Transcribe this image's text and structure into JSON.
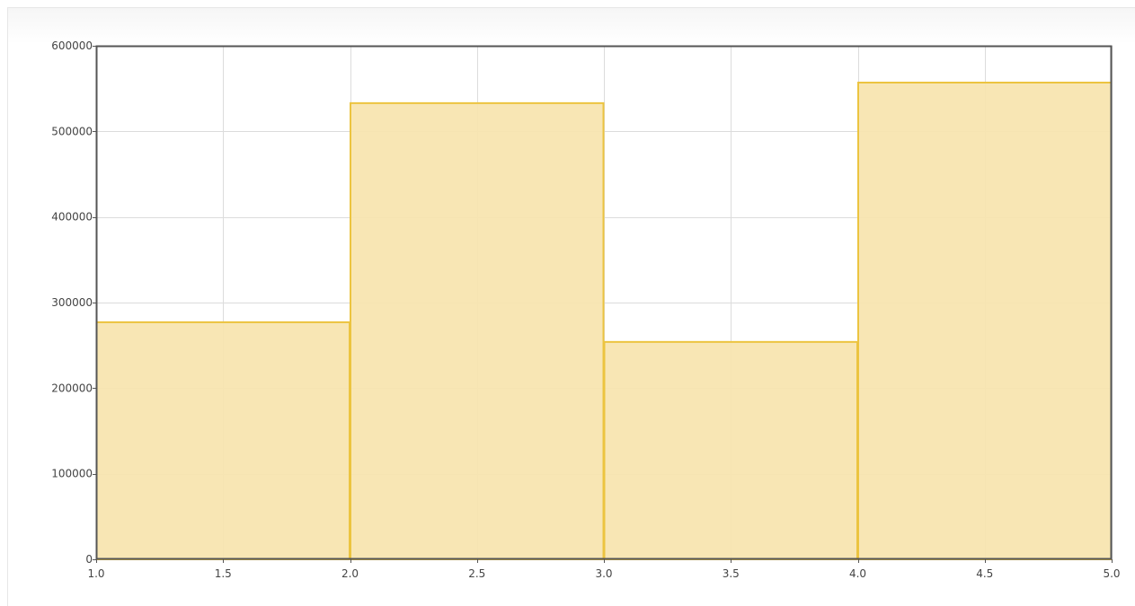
{
  "chart_data": {
    "type": "bar",
    "title": "",
    "xlabel": "",
    "ylabel": "",
    "bins": [
      {
        "x0": 1.0,
        "x1": 2.0,
        "value": 277000
      },
      {
        "x0": 2.0,
        "x1": 3.0,
        "value": 533000
      },
      {
        "x0": 3.0,
        "x1": 4.0,
        "value": 254000
      },
      {
        "x0": 4.0,
        "x1": 5.0,
        "value": 557000
      }
    ],
    "xlim": [
      1.0,
      5.0
    ],
    "ylim": [
      0,
      600000
    ],
    "x_ticks": [
      "1.0",
      "1.5",
      "2.0",
      "2.5",
      "3.0",
      "3.5",
      "4.0",
      "4.5",
      "5.0"
    ],
    "y_ticks": [
      "0",
      "100000",
      "200000",
      "300000",
      "400000",
      "500000",
      "600000"
    ],
    "grid": true,
    "colors": {
      "bar_fill": "#f7e4ae",
      "bar_stroke": "#ecc440",
      "grid": "#dcdcdc",
      "axis": "#555555"
    }
  }
}
